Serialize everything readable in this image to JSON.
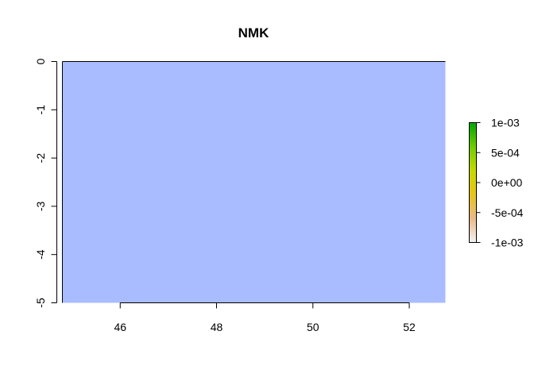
{
  "chart_data": {
    "type": "heatmap",
    "title": "NMK",
    "xlabel": "",
    "ylabel": "",
    "xlim": [
      44.8,
      52.75
    ],
    "ylim": [
      -5,
      0
    ],
    "x_ticks": [
      {
        "value": 46,
        "label": "46"
      },
      {
        "value": 48,
        "label": "48"
      },
      {
        "value": 50,
        "label": "50"
      },
      {
        "value": 52,
        "label": "52"
      }
    ],
    "y_ticks": [
      {
        "value": 0,
        "label": "0"
      },
      {
        "value": -1,
        "label": "-1"
      },
      {
        "value": -2,
        "label": "-2"
      },
      {
        "value": -3,
        "label": "-3"
      },
      {
        "value": -4,
        "label": "-4"
      },
      {
        "value": -5,
        "label": "-5"
      }
    ],
    "raster": {
      "x_range": [
        44.8,
        52.75
      ],
      "y_range": [
        -5,
        0
      ],
      "fill_color": "#a9bcff"
    },
    "legend": {
      "placement": "right",
      "range": [
        -0.001,
        0.001
      ],
      "ticks": [
        {
          "value": 0.001,
          "label": "1e-03"
        },
        {
          "value": 0.0005,
          "label": "5e-04"
        },
        {
          "value": 0,
          "label": "0e+00"
        },
        {
          "value": -0.0005,
          "label": "-5e-04"
        },
        {
          "value": -0.001,
          "label": "-1e-03"
        }
      ],
      "colors": [
        "#f2f2f2",
        "#e8b98b",
        "#e6c41c",
        "#c5d900",
        "#6fcb00",
        "#00a600"
      ]
    }
  }
}
